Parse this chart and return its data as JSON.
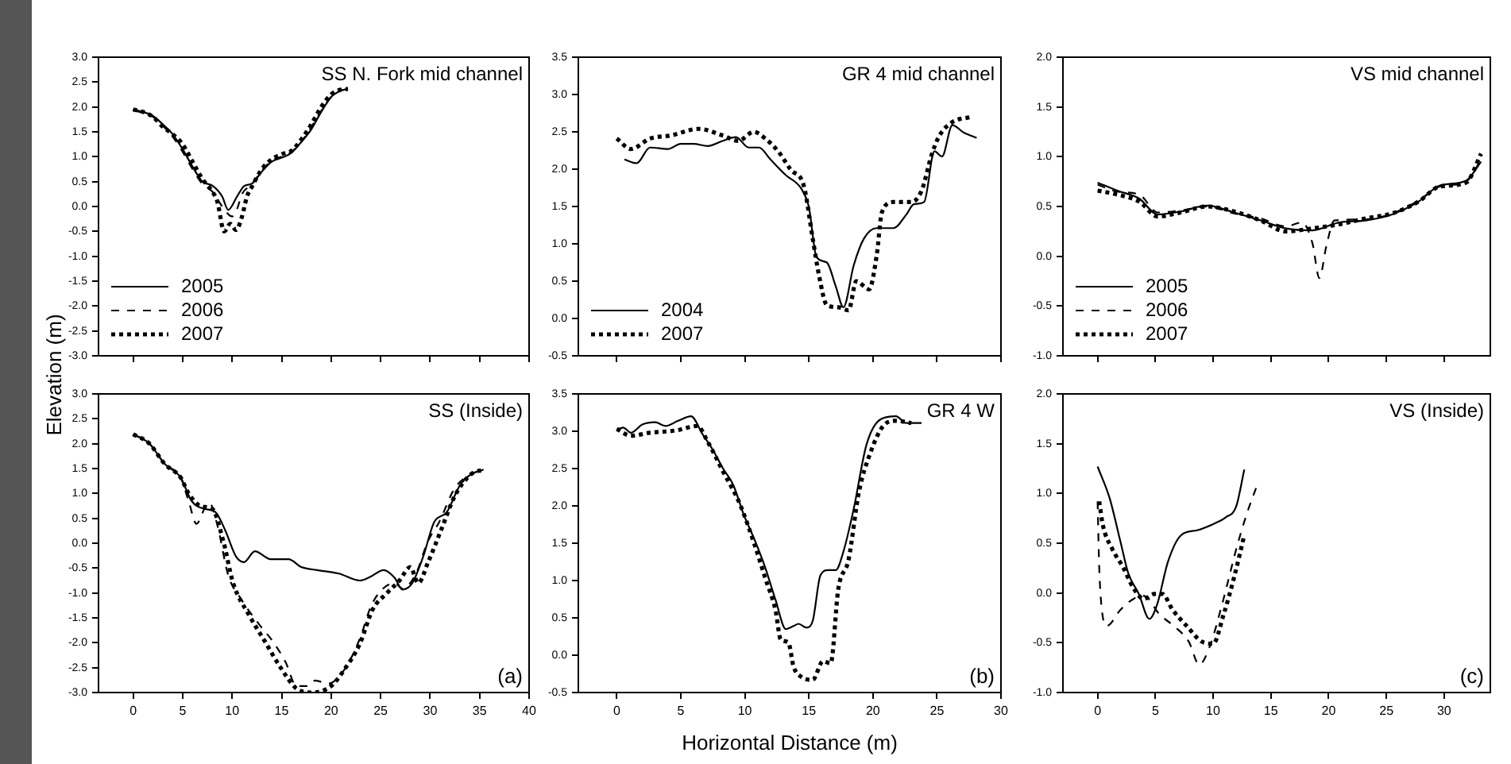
{
  "chart_data": [
    {
      "type": "line",
      "title": "SS N. Fork mid channel",
      "xlim": [
        -3.5,
        40
      ],
      "xticks": [
        0,
        5,
        10,
        15,
        20,
        25,
        30,
        35,
        40
      ],
      "ylim": [
        -3,
        3
      ],
      "yticks": [
        {
          "value": -3,
          "label": "-3.0"
        },
        {
          "value": -2.5,
          "label": "-2.5"
        },
        {
          "value": -2,
          "label": "-2.0"
        },
        {
          "value": -1.5,
          "label": "-1.5"
        },
        {
          "value": -1,
          "label": "-1.0"
        },
        {
          "value": -0.5,
          "label": "-0.5"
        },
        {
          "value": 0,
          "label": "0.0"
        },
        {
          "value": 0.5,
          "label": "0.5"
        },
        {
          "value": 1,
          "label": "1.0"
        },
        {
          "value": 1.5,
          "label": "1.5"
        },
        {
          "value": 2,
          "label": "2.0"
        },
        {
          "value": 2.5,
          "label": "2.5"
        },
        {
          "value": 3,
          "label": "3.0"
        }
      ],
      "tick_labels": "y",
      "legend": "bottom left",
      "series": [
        {
          "name": "2005",
          "color": "#000000",
          "line_style": "solid",
          "x": [
            0,
            1,
            2,
            3,
            4,
            5,
            6,
            7,
            8,
            9,
            9.6,
            10.5,
            11.2,
            12,
            13,
            14,
            15,
            16,
            17,
            18,
            19,
            20,
            21,
            21.7
          ],
          "values": [
            1.95,
            1.9,
            1.82,
            1.65,
            1.45,
            1.15,
            0.8,
            0.5,
            0.42,
            0.2,
            -0.07,
            0.2,
            0.41,
            0.46,
            0.7,
            0.9,
            0.98,
            1.08,
            1.3,
            1.55,
            1.9,
            2.2,
            2.33,
            2.36
          ]
        },
        {
          "name": "2006",
          "color": "#000000",
          "line_style": "dashed",
          "x": [
            0,
            1,
            2,
            3,
            4,
            5,
            6,
            7,
            8,
            9,
            10,
            10.5,
            11,
            12,
            13,
            14,
            15,
            16,
            17,
            18,
            19,
            20,
            21,
            21.7
          ],
          "values": [
            1.93,
            1.88,
            1.8,
            1.62,
            1.4,
            1.1,
            0.75,
            0.45,
            0.3,
            0,
            -0.2,
            -0.05,
            0.25,
            0.45,
            0.72,
            0.92,
            1,
            1.1,
            1.3,
            1.6,
            1.92,
            2.2,
            2.33,
            2.36
          ]
        },
        {
          "name": "2007",
          "color": "#000000",
          "line_style": "dotted",
          "x": [
            0,
            1,
            2,
            3,
            4,
            5,
            6,
            7,
            8,
            8.5,
            9.2,
            9.8,
            10.4,
            11,
            11.5,
            12,
            13,
            14,
            15,
            16,
            17,
            18,
            19,
            20,
            21,
            21.7
          ],
          "values": [
            1.95,
            1.9,
            1.8,
            1.6,
            1.45,
            1.25,
            0.9,
            0.55,
            0.3,
            0.1,
            -0.5,
            -0.35,
            -0.47,
            -0.2,
            0.2,
            0.4,
            0.75,
            0.95,
            1.05,
            1.12,
            1.35,
            1.65,
            2,
            2.25,
            2.35,
            2.36
          ]
        }
      ]
    },
    {
      "type": "line",
      "title": "GR 4 mid channel",
      "xlim": [
        -3,
        30
      ],
      "xticks": [
        0,
        5,
        10,
        15,
        20,
        25,
        30
      ],
      "ylim": [
        -0.5,
        3.5
      ],
      "yticks": [
        {
          "value": -0.5,
          "label": "-0.5"
        },
        {
          "value": 0,
          "label": "0.0"
        },
        {
          "value": 0.5,
          "label": "0.5"
        },
        {
          "value": 1,
          "label": "1.0"
        },
        {
          "value": 1.5,
          "label": "1.5"
        },
        {
          "value": 2,
          "label": "2.0"
        },
        {
          "value": 2.5,
          "label": "2.5"
        },
        {
          "value": 3,
          "label": "3.0"
        },
        {
          "value": 3.5,
          "label": "3.5"
        }
      ],
      "tick_labels": "y",
      "legend": "bottom left",
      "series": [
        {
          "name": "2004",
          "color": "#000000",
          "line_style": "solid",
          "x": [
            0.6,
            1.55,
            2.6,
            4,
            5,
            6,
            7.1,
            8.3,
            9.3,
            10.3,
            11.1,
            12,
            13.2,
            14.4,
            15,
            15.6,
            16.4,
            17.1,
            17.7,
            18.5,
            19.3,
            20.3,
            21.6,
            22.6,
            23.2,
            24,
            24.8,
            25.4,
            26.2,
            27.1,
            28.1
          ],
          "values": [
            2.13,
            2.08,
            2.29,
            2.27,
            2.34,
            2.34,
            2.31,
            2.38,
            2.43,
            2.29,
            2.29,
            2.13,
            1.92,
            1.74,
            1.49,
            0.82,
            0.75,
            0.43,
            0.15,
            0.71,
            1.07,
            1.21,
            1.21,
            1.39,
            1.53,
            1.56,
            2.24,
            2.17,
            2.59,
            2.49,
            2.42
          ]
        },
        {
          "name": "2007",
          "color": "#000000",
          "line_style": "dotted",
          "x": [
            0,
            1.1,
            2.6,
            4.2,
            6.4,
            8.3,
            9.5,
            10.7,
            11.6,
            12.6,
            13.6,
            14.6,
            15.3,
            15.8,
            16.4,
            17.3,
            18.1,
            18.7,
            19.7,
            20.3,
            20.7,
            21.6,
            23,
            23.8,
            24.6,
            25.2,
            26.2,
            27.7
          ],
          "values": [
            2.41,
            2.27,
            2.41,
            2.45,
            2.54,
            2.45,
            2.38,
            2.5,
            2.41,
            2.24,
            1.99,
            1.78,
            1.07,
            0.57,
            0.18,
            0.15,
            0.11,
            0.5,
            0.39,
            0.85,
            1.42,
            1.56,
            1.56,
            1.71,
            2.2,
            2.45,
            2.63,
            2.7
          ]
        }
      ]
    },
    {
      "type": "line",
      "title": "VS mid channel",
      "xlim": [
        -3,
        34
      ],
      "xticks": [
        0,
        5,
        10,
        15,
        20,
        25,
        30
      ],
      "ylim": [
        -1,
        2
      ],
      "yticks": [
        {
          "value": -1,
          "label": "-1.0"
        },
        {
          "value": -0.5,
          "label": "-0.5"
        },
        {
          "value": 0,
          "label": "0.0"
        },
        {
          "value": 0.5,
          "label": "0.5"
        },
        {
          "value": 1,
          "label": "1.0"
        },
        {
          "value": 1.5,
          "label": "1.5"
        },
        {
          "value": 2,
          "label": "2.0"
        }
      ],
      "tick_labels": "y",
      "legend": "bottom left",
      "series": [
        {
          "name": "2005",
          "color": "#000000",
          "line_style": "solid",
          "x": [
            0,
            1.7,
            3.6,
            5.2,
            7.2,
            9.5,
            11.8,
            14.1,
            16.3,
            18.6,
            20.9,
            23.2,
            25.5,
            27.8,
            29.6,
            31.9,
            33.2
          ],
          "values": [
            0.74,
            0.66,
            0.58,
            0.42,
            0.45,
            0.51,
            0.44,
            0.36,
            0.28,
            0.26,
            0.34,
            0.36,
            0.42,
            0.55,
            0.71,
            0.76,
            0.95
          ]
        },
        {
          "name": "2006",
          "color": "#000000",
          "line_style": "dashed",
          "x": [
            0,
            1.7,
            3.6,
            5.2,
            7.2,
            9.5,
            11.8,
            14.1,
            16.3,
            17.7,
            18.6,
            19.2,
            19.8,
            20.5,
            23.2,
            25.5,
            27.8,
            29.6,
            31.9,
            33.2
          ],
          "values": [
            0.72,
            0.65,
            0.62,
            0.44,
            0.46,
            0.5,
            0.43,
            0.38,
            0.3,
            0.34,
            0.13,
            -0.22,
            0.1,
            0.36,
            0.37,
            0.43,
            0.56,
            0.7,
            0.75,
            0.97
          ]
        },
        {
          "name": "2007",
          "color": "#000000",
          "line_style": "dotted",
          "x": [
            0,
            1.7,
            3.6,
            5.2,
            7.2,
            9.5,
            11.8,
            14.1,
            16.3,
            18.6,
            20.9,
            23.2,
            25.5,
            27.8,
            29.6,
            31.9,
            33.2
          ],
          "values": [
            0.66,
            0.62,
            0.55,
            0.4,
            0.44,
            0.5,
            0.45,
            0.36,
            0.25,
            0.28,
            0.32,
            0.38,
            0.43,
            0.55,
            0.7,
            0.74,
            1.03
          ]
        }
      ]
    },
    {
      "type": "line",
      "title": "SS (Inside)",
      "ylabel": "Elevation (m)",
      "annotations": [
        "(a)"
      ],
      "xlim": [
        -3.5,
        40
      ],
      "xticks": [
        0,
        5,
        10,
        15,
        20,
        25,
        30,
        35,
        40
      ],
      "ylim": [
        -3,
        3
      ],
      "yticks": [
        {
          "value": -3,
          "label": "-3.0"
        },
        {
          "value": -2.5,
          "label": "-2.5"
        },
        {
          "value": -2,
          "label": "-2.0"
        },
        {
          "value": -1.5,
          "label": "-1.5"
        },
        {
          "value": -1,
          "label": "-1.0"
        },
        {
          "value": -0.5,
          "label": "-0.5"
        },
        {
          "value": 0,
          "label": "0.0"
        },
        {
          "value": 0.5,
          "label": "0.5"
        },
        {
          "value": 1,
          "label": "1.0"
        },
        {
          "value": 1.5,
          "label": "1.5"
        },
        {
          "value": 2,
          "label": "2.0"
        },
        {
          "value": 2.5,
          "label": "2.5"
        },
        {
          "value": 3,
          "label": "3.0"
        }
      ],
      "series": [
        {
          "color": "#000000",
          "line_style": "solid",
          "x": [
            0,
            1.6,
            3.2,
            4.8,
            5.9,
            7.2,
            8.3,
            9.3,
            10.4,
            11.2,
            12.3,
            13.9,
            15.7,
            17,
            18.6,
            20.8,
            22.9,
            24,
            25.3,
            26.4,
            27.2,
            28.2,
            29.3,
            30.4,
            31.7,
            33,
            34.1,
            35.4
          ],
          "values": [
            2.19,
            2.01,
            1.59,
            1.32,
            0.85,
            0.69,
            0.63,
            0.26,
            -0.27,
            -0.38,
            -0.16,
            -0.32,
            -0.32,
            -0.48,
            -0.54,
            -0.61,
            -0.75,
            -0.67,
            -0.54,
            -0.69,
            -0.93,
            -0.8,
            -0.27,
            0.42,
            0.63,
            1.16,
            1.38,
            1.48
          ]
        },
        {
          "color": "#000000",
          "line_style": "dashed",
          "x": [
            0,
            1.6,
            3.2,
            4.8,
            5.6,
            6.4,
            7.2,
            7.7,
            8.5,
            9.6,
            10.9,
            12.8,
            14.1,
            15.4,
            16.5,
            17.6,
            18.4,
            19.7,
            21.3,
            22.9,
            24,
            25,
            26.4,
            27.2,
            28.5,
            29.8,
            30.9,
            32.5,
            34.1,
            35.4
          ],
          "values": [
            2.19,
            2.01,
            1.59,
            1.32,
            0.85,
            0.39,
            0.69,
            0.81,
            0.37,
            -0.64,
            -1.12,
            -1.65,
            -1.97,
            -2.39,
            -2.87,
            -2.87,
            -2.76,
            -2.82,
            -2.55,
            -1.92,
            -1.28,
            -0.96,
            -0.8,
            -0.91,
            -0.64,
            0.05,
            0.42,
            1.11,
            1.38,
            1.48
          ]
        },
        {
          "color": "#000000",
          "line_style": "dotted",
          "x": [
            0,
            1.6,
            3.2,
            4.8,
            5.6,
            6.9,
            8,
            9.1,
            10.1,
            11.7,
            13.3,
            14.9,
            16.5,
            18.1,
            20,
            21.3,
            22.9,
            24.2,
            25.6,
            26.9,
            28,
            28.8,
            29.8,
            31.1,
            32.5,
            34.1,
            35.4
          ],
          "values": [
            2.19,
            2.01,
            1.59,
            1.32,
            1,
            0.74,
            0.69,
            0.05,
            -0.8,
            -1.44,
            -1.97,
            -2.5,
            -2.92,
            -3,
            -2.87,
            -2.55,
            -2.02,
            -1.33,
            -1.01,
            -0.75,
            -0.48,
            -0.8,
            -0.38,
            0.26,
            0.95,
            1.38,
            1.48
          ]
        }
      ]
    },
    {
      "type": "line",
      "title": "GR 4 W",
      "xlabel": "Horizontal Distance (m)",
      "annotations": [
        "(b)"
      ],
      "xlim": [
        -3,
        30
      ],
      "xticks": [
        0,
        5,
        10,
        15,
        20,
        25,
        30
      ],
      "ylim": [
        -0.5,
        3.5
      ],
      "yticks": [
        {
          "value": -0.5,
          "label": "-0.5"
        },
        {
          "value": 0,
          "label": "0.0"
        },
        {
          "value": 0.5,
          "label": "0.5"
        },
        {
          "value": 1,
          "label": "1.0"
        },
        {
          "value": 1.5,
          "label": "1.5"
        },
        {
          "value": 2,
          "label": "2.0"
        },
        {
          "value": 2.5,
          "label": "2.5"
        },
        {
          "value": 3,
          "label": "3.0"
        },
        {
          "value": 3.5,
          "label": "3.5"
        }
      ],
      "series": [
        {
          "color": "#000000",
          "line_style": "solid",
          "x": [
            0,
            0.5,
            1.1,
            2,
            3,
            3.8,
            4.8,
            5.8,
            6.7,
            7.5,
            8.3,
            9.1,
            9.9,
            10.8,
            11.6,
            12.4,
            13.2,
            13.8,
            14.2,
            14.8,
            15.3,
            15.9,
            16.5,
            17.1,
            17.7,
            18.5,
            19.5,
            20.6,
            21.8,
            22.6,
            23.8
          ],
          "values": [
            3.02,
            3.05,
            2.98,
            3.09,
            3.12,
            3.07,
            3.14,
            3.2,
            2.96,
            2.75,
            2.5,
            2.28,
            1.89,
            1.53,
            1.17,
            0.74,
            0.35,
            0.39,
            0.42,
            0.37,
            0.46,
            1.07,
            1.14,
            1.14,
            1.39,
            1.96,
            2.82,
            3.16,
            3.2,
            3.11,
            3.11
          ]
        },
        {
          "color": "#000000",
          "line_style": "dotted",
          "x": [
            0,
            1.1,
            2.6,
            4.6,
            6.3,
            7.1,
            8.3,
            9.6,
            10.8,
            11.6,
            12.4,
            12.8,
            13.4,
            13.8,
            14.4,
            15.3,
            16.1,
            16.7,
            17.3,
            18.1,
            18.9,
            19.8,
            20.8,
            21.8,
            23
          ],
          "values": [
            3.03,
            2.94,
            2.98,
            3.01,
            3.07,
            2.86,
            2.46,
            2.03,
            1.46,
            1.03,
            0.6,
            0.21,
            0.17,
            -0.15,
            -0.29,
            -0.33,
            -0.08,
            -0.11,
            0.89,
            1.28,
            2.18,
            2.71,
            3.07,
            3.14,
            3.11
          ]
        }
      ]
    },
    {
      "type": "line",
      "title": "VS (Inside)",
      "annotations": [
        "(c)"
      ],
      "xlim": [
        -3,
        34
      ],
      "xticks": [
        0,
        5,
        10,
        15,
        20,
        25,
        30
      ],
      "ylim": [
        -1,
        2
      ],
      "yticks": [
        {
          "value": -1,
          "label": "-1.0"
        },
        {
          "value": -0.5,
          "label": "-0.5"
        },
        {
          "value": 0,
          "label": "0.0"
        },
        {
          "value": 0.5,
          "label": "0.5"
        },
        {
          "value": 1,
          "label": "1.0"
        },
        {
          "value": 1.5,
          "label": "1.5"
        },
        {
          "value": 2,
          "label": "2.0"
        }
      ],
      "series": [
        {
          "color": "#000000",
          "line_style": "solid",
          "x": [
            0,
            1.05,
            1.97,
            2.65,
            3.57,
            4.48,
            5.17,
            6.08,
            7.22,
            8.6,
            9.97,
            11.1,
            12,
            12.7
          ],
          "values": [
            1.27,
            0.95,
            0.52,
            0.2,
            -0.01,
            -0.26,
            -0.11,
            0.31,
            0.58,
            0.63,
            0.69,
            0.76,
            0.87,
            1.24
          ]
        },
        {
          "color": "#000000",
          "line_style": "dashed",
          "x": [
            0,
            0.14,
            0.37,
            0.82,
            1.97,
            3.1,
            4,
            5.4,
            6.8,
            7.9,
            8.8,
            9.7,
            10.9,
            12,
            12.9,
            13.8
          ],
          "values": [
            0.92,
            0.26,
            -0.17,
            -0.33,
            -0.17,
            -0.06,
            -0.03,
            -0.22,
            -0.35,
            -0.49,
            -0.72,
            -0.54,
            -0.06,
            0.44,
            0.79,
            1.08
          ]
        },
        {
          "color": "#000000",
          "line_style": "dotted",
          "x": [
            0.14,
            0.46,
            1.28,
            2.2,
            3.1,
            4,
            4.9,
            5.6,
            6.5,
            7.7,
            9.05,
            10,
            10.9,
            11.8,
            12.7
          ],
          "values": [
            0.92,
            0.68,
            0.44,
            0.26,
            0.05,
            -0.06,
            -0.01,
            -0.01,
            -0.17,
            -0.33,
            -0.49,
            -0.51,
            -0.22,
            0.15,
            0.58
          ]
        }
      ]
    }
  ]
}
